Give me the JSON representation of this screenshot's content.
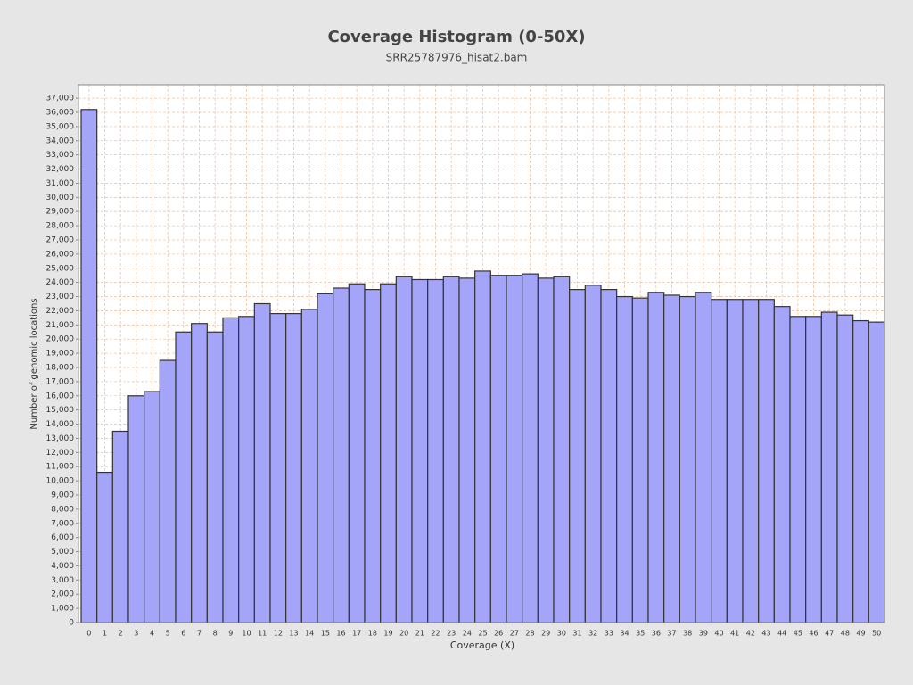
{
  "chart_data": {
    "type": "bar",
    "title": "Coverage Histogram (0-50X)",
    "subtitle": "SRR25787976_hisat2.bam",
    "x_label": "Coverage (X)",
    "y_label": "Number of genomic locations",
    "categories": [
      "0",
      "1",
      "2",
      "3",
      "4",
      "5",
      "6",
      "7",
      "8",
      "9",
      "10",
      "11",
      "12",
      "13",
      "14",
      "15",
      "16",
      "17",
      "18",
      "19",
      "20",
      "21",
      "22",
      "23",
      "24",
      "25",
      "26",
      "27",
      "28",
      "29",
      "30",
      "31",
      "32",
      "33",
      "34",
      "35",
      "36",
      "37",
      "38",
      "39",
      "40",
      "41",
      "42",
      "43",
      "44",
      "45",
      "46",
      "47",
      "48",
      "49",
      "50"
    ],
    "values": [
      36200,
      10600,
      13500,
      16000,
      16300,
      18500,
      20500,
      21100,
      20500,
      21500,
      21600,
      22500,
      21800,
      21800,
      22100,
      23200,
      23600,
      23900,
      23500,
      23900,
      24400,
      24200,
      24200,
      24400,
      24300,
      24800,
      24500,
      24500,
      24600,
      24300,
      24400,
      23500,
      23800,
      23500,
      23000,
      22900,
      23300,
      23100,
      23000,
      23300,
      22800,
      22800,
      22800,
      22800,
      22300,
      21600,
      21600,
      21900,
      21700,
      21300,
      21200
    ],
    "color": "#a4a4f8",
    "ylim": [
      0,
      37950
    ],
    "yticks": [
      0,
      {
        "value": 1000,
        "label": "1,000"
      },
      {
        "value": 2000,
        "label": "2,000"
      },
      {
        "value": 3000,
        "label": "3,000"
      },
      {
        "value": 4000,
        "label": "4,000"
      },
      {
        "value": 5000,
        "label": "5,000"
      },
      {
        "value": 6000,
        "label": "6,000"
      },
      {
        "value": 7000,
        "label": "7,000"
      },
      {
        "value": 8000,
        "label": "8,000"
      },
      {
        "value": 9000,
        "label": "9,000"
      },
      {
        "value": 10000,
        "label": "10,000"
      },
      {
        "value": 11000,
        "label": "11,000"
      },
      {
        "value": 12000,
        "label": "12,000"
      },
      {
        "value": 13000,
        "label": "13,000"
      },
      {
        "value": 14000,
        "label": "14,000"
      },
      {
        "value": 15000,
        "label": "15,000"
      },
      {
        "value": 16000,
        "label": "16,000"
      },
      {
        "value": 17000,
        "label": "17,000"
      },
      {
        "value": 18000,
        "label": "18,000"
      },
      {
        "value": 19000,
        "label": "19,000"
      },
      {
        "value": 20000,
        "label": "20,000"
      },
      {
        "value": 21000,
        "label": "21,000"
      },
      {
        "value": 22000,
        "label": "22,000"
      },
      {
        "value": 23000,
        "label": "23,000"
      },
      {
        "value": 24000,
        "label": "24,000"
      },
      {
        "value": 25000,
        "label": "25,000"
      },
      {
        "value": 26000,
        "label": "26,000"
      },
      {
        "value": 27000,
        "label": "27,000"
      },
      {
        "value": 28000,
        "label": "28,000"
      },
      {
        "value": 29000,
        "label": "29,000"
      },
      {
        "value": 30000,
        "label": "30,000"
      },
      {
        "value": 31000,
        "label": "31,000"
      },
      {
        "value": 32000,
        "label": "32,000"
      },
      {
        "value": 33000,
        "label": "33,000"
      },
      {
        "value": 34000,
        "label": "34,000"
      },
      {
        "value": 35000,
        "label": "35,000"
      },
      {
        "value": 36000,
        "label": "36,000"
      },
      {
        "value": 37000,
        "label": "37,000"
      }
    ],
    "grid": true
  }
}
